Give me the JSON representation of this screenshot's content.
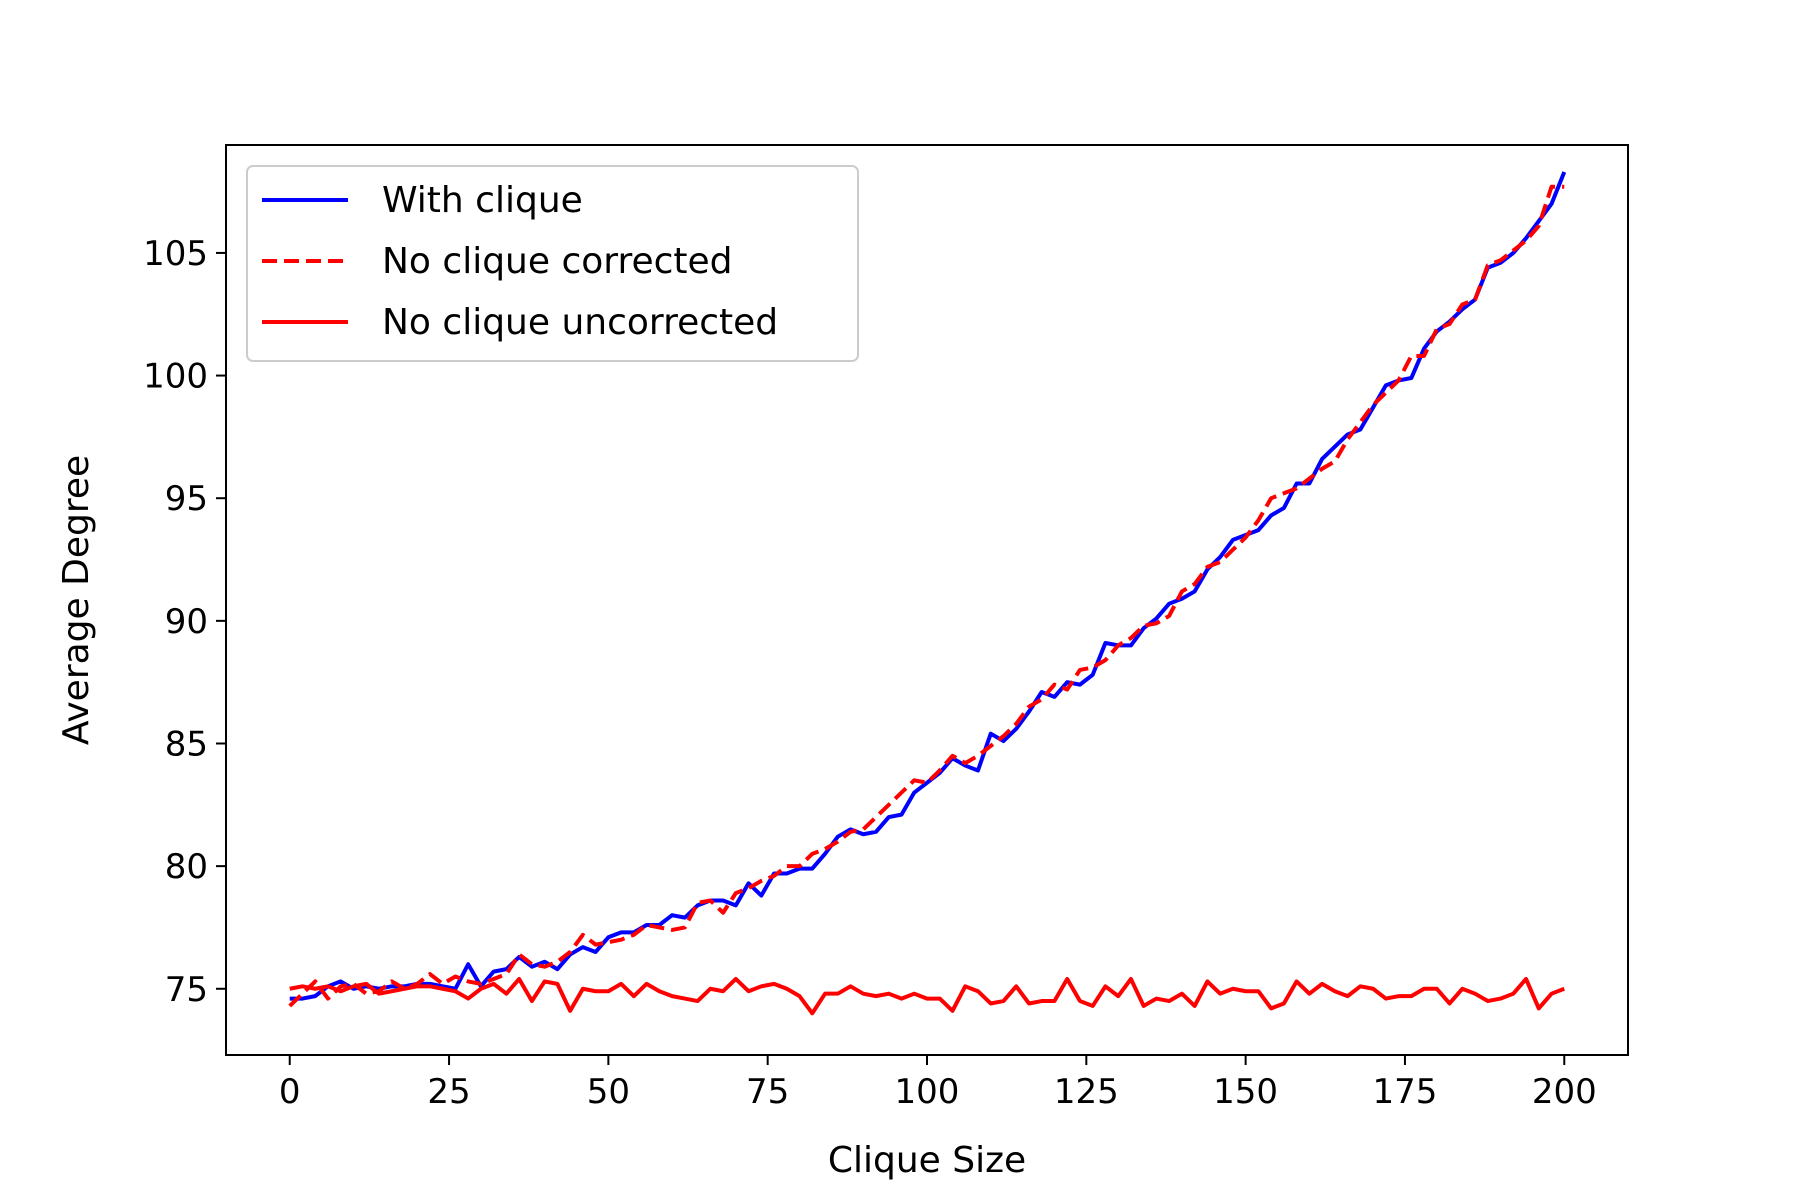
{
  "chart_data": {
    "type": "line",
    "title": "",
    "xlabel": "Clique Size",
    "ylabel": "Average Degree",
    "xlim": [
      -10,
      210
    ],
    "ylim": [
      72.3,
      109.4
    ],
    "xticks": [
      0,
      25,
      50,
      75,
      100,
      125,
      150,
      175,
      200
    ],
    "yticks": [
      75,
      80,
      85,
      90,
      95,
      100,
      105
    ],
    "grid": false,
    "legend_position": "top-left",
    "x": [
      0,
      2,
      4,
      6,
      8,
      10,
      12,
      14,
      16,
      18,
      20,
      22,
      24,
      26,
      28,
      30,
      32,
      34,
      36,
      38,
      40,
      42,
      44,
      46,
      48,
      50,
      52,
      54,
      56,
      58,
      60,
      62,
      64,
      66,
      68,
      70,
      72,
      74,
      76,
      78,
      80,
      82,
      84,
      86,
      88,
      90,
      92,
      94,
      96,
      98,
      100,
      102,
      104,
      106,
      108,
      110,
      112,
      114,
      116,
      118,
      120,
      122,
      124,
      126,
      128,
      130,
      132,
      134,
      136,
      138,
      140,
      142,
      144,
      146,
      148,
      150,
      152,
      154,
      156,
      158,
      160,
      162,
      164,
      166,
      168,
      170,
      172,
      174,
      176,
      178,
      180,
      182,
      184,
      186,
      188,
      190,
      192,
      194,
      196,
      198,
      200
    ],
    "series": [
      {
        "name": "With clique",
        "color": "#0000ff",
        "dash": "solid",
        "values": [
          74.6,
          74.6,
          74.7,
          75.1,
          75.3,
          75.0,
          75.1,
          75.0,
          75.1,
          75.1,
          75.2,
          75.2,
          75.1,
          75.0,
          76.0,
          75.1,
          75.7,
          75.8,
          76.3,
          75.9,
          76.1,
          75.8,
          76.4,
          76.7,
          76.5,
          77.1,
          77.3,
          77.3,
          77.6,
          77.6,
          78.0,
          77.9,
          78.4,
          78.6,
          78.6,
          78.4,
          79.3,
          78.8,
          79.7,
          79.7,
          79.9,
          79.9,
          80.5,
          81.2,
          81.5,
          81.3,
          81.4,
          82.0,
          82.1,
          83.0,
          83.4,
          83.8,
          84.4,
          84.1,
          83.9,
          85.4,
          85.1,
          85.6,
          86.3,
          87.1,
          86.9,
          87.5,
          87.4,
          87.8,
          89.1,
          89.0,
          89.0,
          89.7,
          90.1,
          90.7,
          90.9,
          91.2,
          92.1,
          92.6,
          93.3,
          93.5,
          93.7,
          94.3,
          94.6,
          95.6,
          95.6,
          96.6,
          97.1,
          97.6,
          97.8,
          98.7,
          99.6,
          99.8,
          99.9,
          101.1,
          101.8,
          102.2,
          102.7,
          103.1,
          104.4,
          104.6,
          105.0,
          105.6,
          106.3,
          107.0,
          108.3
        ]
      },
      {
        "name": "No clique corrected",
        "color": "#ff0000",
        "dash": "dashed",
        "values": [
          74.3,
          74.8,
          75.3,
          74.6,
          75.1,
          75.2,
          74.8,
          74.9,
          75.3,
          75.0,
          75.2,
          75.6,
          75.2,
          75.5,
          75.3,
          75.2,
          75.4,
          75.6,
          76.4,
          76.0,
          75.9,
          76.1,
          76.5,
          77.2,
          76.8,
          76.9,
          77.0,
          77.2,
          77.6,
          77.5,
          77.4,
          77.5,
          78.5,
          78.6,
          78.1,
          78.9,
          79.1,
          79.4,
          79.6,
          80.0,
          80.0,
          80.5,
          80.7,
          81.0,
          81.4,
          81.5,
          82.0,
          82.5,
          83.0,
          83.5,
          83.4,
          83.9,
          84.5,
          84.2,
          84.5,
          84.9,
          85.3,
          85.8,
          86.5,
          86.8,
          87.4,
          87.2,
          88.0,
          88.1,
          88.4,
          89.0,
          89.3,
          89.8,
          89.9,
          90.2,
          91.2,
          91.5,
          92.2,
          92.4,
          92.9,
          93.4,
          94.1,
          95.0,
          95.2,
          95.4,
          95.8,
          96.2,
          96.5,
          97.4,
          98.1,
          98.8,
          99.3,
          99.8,
          100.8,
          100.8,
          101.9,
          102.1,
          102.9,
          103.1,
          104.5,
          104.7,
          105.1,
          105.5,
          106.1,
          107.7,
          107.7
        ]
      },
      {
        "name": "No clique uncorrected",
        "color": "#ff0000",
        "dash": "solid",
        "values": [
          75.0,
          75.1,
          75.0,
          75.1,
          74.9,
          75.1,
          75.2,
          74.8,
          74.9,
          75.0,
          75.1,
          75.1,
          75.0,
          74.9,
          74.6,
          75.0,
          75.2,
          74.8,
          75.4,
          74.5,
          75.3,
          75.2,
          74.1,
          75.0,
          74.9,
          74.9,
          75.2,
          74.7,
          75.2,
          74.9,
          74.7,
          74.6,
          74.5,
          75.0,
          74.9,
          75.4,
          74.9,
          75.1,
          75.2,
          75.0,
          74.7,
          74.0,
          74.8,
          74.8,
          75.1,
          74.8,
          74.7,
          74.8,
          74.6,
          74.8,
          74.6,
          74.6,
          74.1,
          75.1,
          74.9,
          74.4,
          74.5,
          75.1,
          74.4,
          74.5,
          74.5,
          75.4,
          74.5,
          74.3,
          75.1,
          74.7,
          75.4,
          74.3,
          74.6,
          74.5,
          74.8,
          74.3,
          75.3,
          74.8,
          75.0,
          74.9,
          74.9,
          74.2,
          74.4,
          75.3,
          74.8,
          75.2,
          74.9,
          74.7,
          75.1,
          75.0,
          74.6,
          74.7,
          74.7,
          75.0,
          75.0,
          74.4,
          75.0,
          74.8,
          74.5,
          74.6,
          74.8,
          75.4,
          74.2,
          74.8,
          75.0
        ]
      }
    ]
  }
}
